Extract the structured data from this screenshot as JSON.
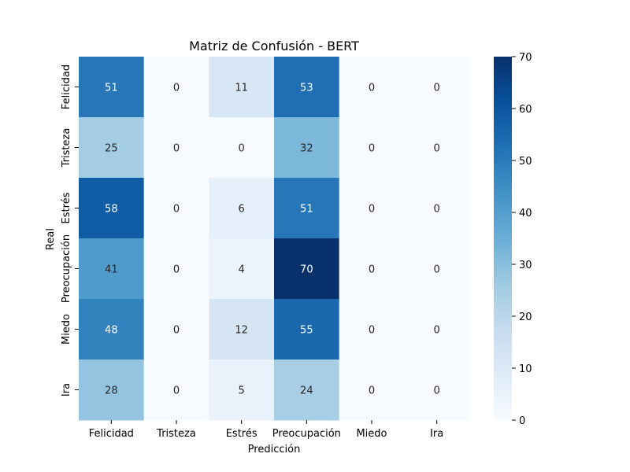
{
  "chart_data": {
    "type": "heatmap",
    "title": "Matriz de Confusión - BERT",
    "xlabel": "Predicción",
    "ylabel": "Real",
    "x_categories": [
      "Felicidad",
      "Tristeza",
      "Estrés",
      "Preocupación",
      "Miedo",
      "Ira"
    ],
    "y_categories": [
      "Felicidad",
      "Tristeza",
      "Estrés",
      "Preocupación",
      "Miedo",
      "Ira"
    ],
    "values": [
      [
        51,
        0,
        11,
        53,
        0,
        0
      ],
      [
        25,
        0,
        0,
        32,
        0,
        0
      ],
      [
        58,
        0,
        6,
        51,
        0,
        0
      ],
      [
        41,
        0,
        4,
        70,
        0,
        0
      ],
      [
        48,
        0,
        12,
        55,
        0,
        0
      ],
      [
        28,
        0,
        5,
        24,
        0,
        0
      ]
    ],
    "colorbar": {
      "min": 0,
      "max": 70,
      "ticks": [
        0,
        10,
        20,
        30,
        40,
        50,
        60,
        70
      ],
      "colormap": "Blues"
    },
    "annotations": true,
    "grid": false
  }
}
